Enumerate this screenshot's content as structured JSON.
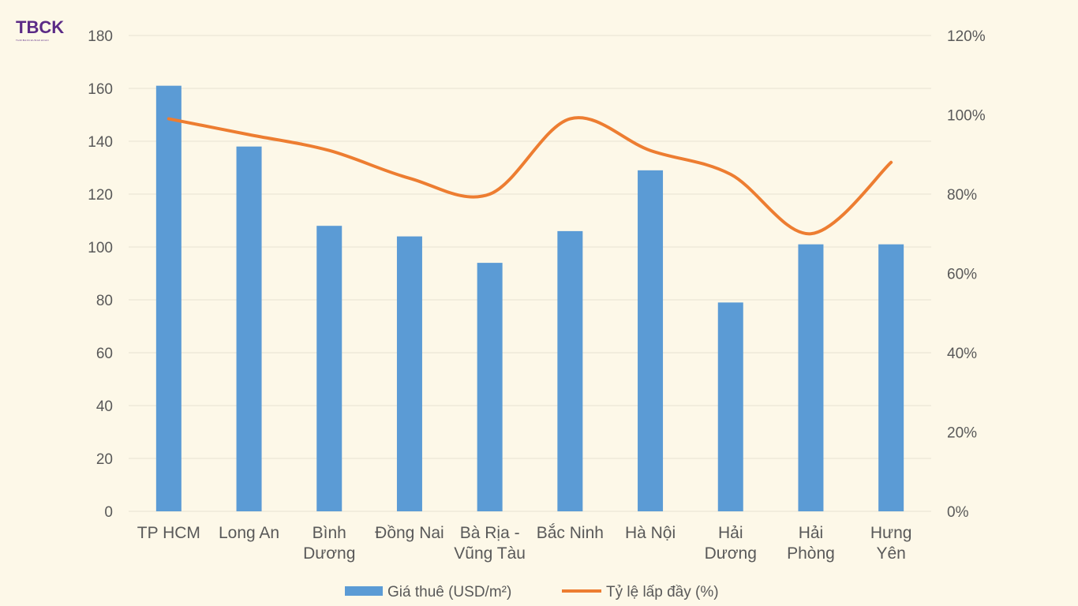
{
  "logo": {
    "text": "TBCK",
    "tagline": "THOIBAOCHUNGKHOAN"
  },
  "colors": {
    "bar": "#5b9bd5",
    "line": "#ed7d31",
    "grid": "#e6e2d2",
    "text": "#595959",
    "background": "#fdf8e8"
  },
  "chart_data": {
    "type": "bar",
    "categories": [
      [
        "TP HCM"
      ],
      [
        "Long An"
      ],
      [
        "Bình",
        "Dương"
      ],
      [
        "Đồng Nai"
      ],
      [
        "Bà Rịa -",
        "Vũng Tàu"
      ],
      [
        "Bắc Ninh"
      ],
      [
        "Hà Nội"
      ],
      [
        "Hải",
        "Dương"
      ],
      [
        "Hải",
        "Phòng"
      ],
      [
        "Hưng",
        "Yên"
      ]
    ],
    "series": [
      {
        "name": "Giá thuê (USD/m²)",
        "type": "bar",
        "axis": "left",
        "values": [
          161,
          138,
          108,
          104,
          94,
          106,
          129,
          79,
          101,
          101
        ]
      },
      {
        "name": "Tỷ lệ lấp đầy (%)",
        "type": "line",
        "axis": "right",
        "smooth": true,
        "values": [
          99,
          95,
          91,
          84,
          80,
          99,
          91,
          85,
          70,
          88
        ]
      }
    ],
    "y_left": {
      "min": 0,
      "max": 180,
      "ticks": [
        "0",
        "20",
        "40",
        "60",
        "80",
        "100",
        "120",
        "140",
        "160",
        "180"
      ]
    },
    "y_right": {
      "min": 0,
      "max": 120,
      "ticks": [
        "0%",
        "20%",
        "40%",
        "60%",
        "80%",
        "100%",
        "120%"
      ]
    },
    "grid": true,
    "legend_position": "bottom"
  }
}
